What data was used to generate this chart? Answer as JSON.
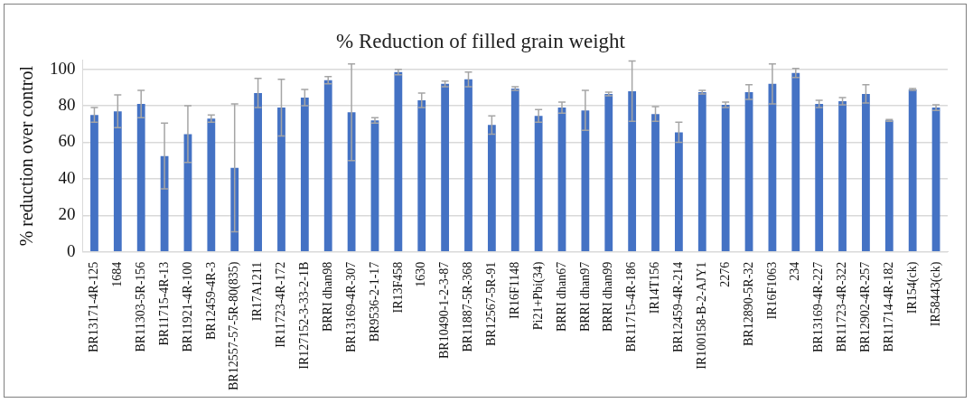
{
  "chart_data": {
    "type": "bar",
    "title": "% Reduction of filled grain weight",
    "ylabel": "% reduction over control",
    "categories": [
      "BR13171-4R-125",
      "1684",
      "BR11303-5R-156",
      "BR11715-4R-13",
      "BR11921-4R-100",
      "BR12459-4R-3",
      "BR12557-57-5R-80(835)",
      "IR17A1211",
      "IR11723-4R-172",
      "IR127152-3-33-2-1B",
      "BRRI dhan98",
      "BR13169-4R-307",
      "BR9536-2-1-17",
      "IR13F458",
      "1630",
      "BR10490-1-2-3-87",
      "BR11887-5R-368",
      "BR12567-5R-91",
      "IR16F1148",
      "Pi21+Pbi(34)",
      "BRRI dhan67",
      "BRRI dhan97",
      "BRRI dhan99",
      "BR11715-4R-186",
      "IR14T156",
      "BR12459-4R-214",
      "IR100158-B-2-AJY1",
      "2276",
      "BR12890-5R-32",
      "IR16F1063",
      "234",
      "BR13169-4R-227",
      "BR11723-4R-322",
      "BR12902-4R-257",
      "BR11714-4R-182",
      "IR154(ck)",
      "IR58443(ck)"
    ],
    "values": [
      75,
      77,
      81,
      52.5,
      64.5,
      73,
      46,
      87,
      79,
      84.5,
      94,
      76.5,
      72,
      98.5,
      83,
      92,
      94.5,
      69.5,
      89.5,
      74.5,
      79,
      77.5,
      86.5,
      88,
      75.5,
      65.5,
      87.5,
      80.5,
      87.5,
      92,
      98,
      81,
      82.5,
      86.5,
      72,
      89,
      79
    ],
    "errors": [
      4,
      9,
      7.5,
      18,
      15.5,
      2,
      35,
      8,
      15.5,
      4.5,
      2,
      26.5,
      1.5,
      1.5,
      4,
      1.5,
      4,
      5,
      1,
      3.5,
      3,
      11,
      1,
      16.5,
      4,
      5.5,
      1,
      1.5,
      4,
      11,
      2.5,
      2,
      2,
      5,
      0.5,
      0.5,
      1.5
    ],
    "color": "#4472c4",
    "ylim": [
      0,
      105
    ],
    "yticks": [
      0,
      20,
      40,
      60,
      80,
      100
    ],
    "grid": "y",
    "legend": false
  }
}
